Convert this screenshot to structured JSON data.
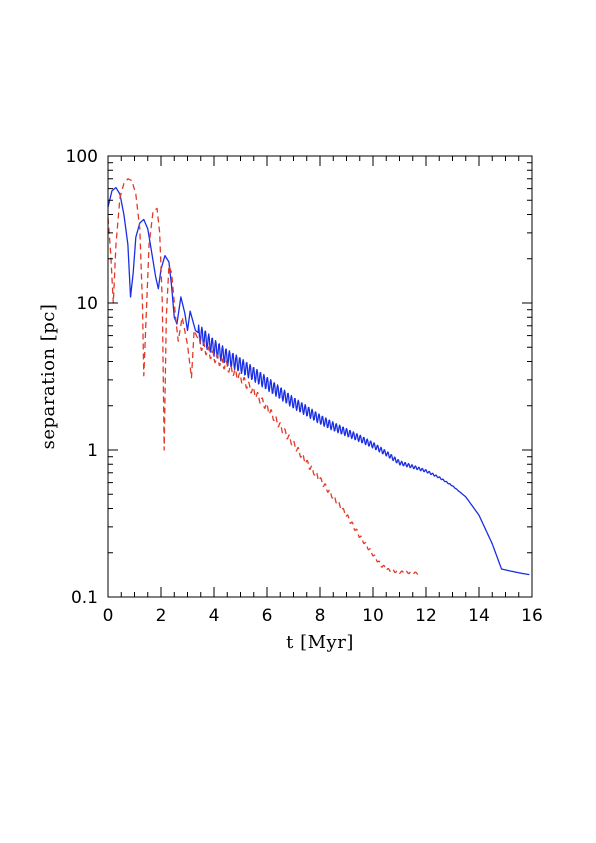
{
  "chart_data": {
    "type": "line",
    "xlabel": "t [Myr]",
    "ylabel": "separation [pc]",
    "xlim": [
      0,
      16
    ],
    "ylim": [
      0.1,
      100
    ],
    "yscale": "log",
    "grid": false,
    "legend": "none",
    "x_ticks": [
      "0",
      "2",
      "4",
      "6",
      "8",
      "10",
      "12",
      "14",
      "16"
    ],
    "y_ticks": [
      "0.1",
      "1",
      "10",
      "100"
    ],
    "series": [
      {
        "style": "solid",
        "color": "#1a2ee6",
        "points": [
          [
            0,
            45
          ],
          [
            0.15,
            58
          ],
          [
            0.3,
            61
          ],
          [
            0.45,
            55
          ],
          [
            0.6,
            40
          ],
          [
            0.75,
            25
          ],
          [
            0.85,
            11
          ],
          [
            0.95,
            16
          ],
          [
            1.05,
            28
          ],
          [
            1.2,
            35
          ],
          [
            1.35,
            37
          ],
          [
            1.5,
            32
          ],
          [
            1.65,
            22
          ],
          [
            1.8,
            15
          ],
          [
            1.9,
            12.5
          ],
          [
            2.0,
            17
          ],
          [
            2.15,
            21
          ],
          [
            2.3,
            19
          ],
          [
            2.4,
            13
          ],
          [
            2.5,
            8
          ],
          [
            2.6,
            7.2
          ],
          [
            2.75,
            11
          ],
          [
            2.9,
            8.5
          ],
          [
            3.0,
            6.5
          ],
          [
            3.1,
            8.8
          ],
          [
            3.3,
            6.5
          ],
          [
            3.6,
            5.9
          ],
          [
            4.0,
            5.0
          ],
          [
            4.5,
            4.3
          ],
          [
            5.0,
            3.8
          ],
          [
            5.5,
            3.3
          ],
          [
            6.0,
            2.85
          ],
          [
            6.5,
            2.45
          ],
          [
            7.0,
            2.1
          ],
          [
            7.5,
            1.85
          ],
          [
            8.0,
            1.62
          ],
          [
            8.5,
            1.45
          ],
          [
            9.0,
            1.32
          ],
          [
            9.5,
            1.2
          ],
          [
            10.0,
            1.08
          ],
          [
            10.5,
            0.95
          ],
          [
            11.0,
            0.82
          ],
          [
            11.5,
            0.77
          ],
          [
            12.0,
            0.72
          ],
          [
            12.5,
            0.65
          ],
          [
            13.0,
            0.57
          ],
          [
            13.5,
            0.48
          ],
          [
            14.0,
            0.36
          ],
          [
            14.5,
            0.23
          ],
          [
            14.85,
            0.155
          ],
          [
            15.2,
            0.15
          ],
          [
            15.6,
            0.145
          ],
          [
            15.9,
            0.142
          ]
        ]
      },
      {
        "style": "dashed",
        "color": "#e23a2a",
        "points": [
          [
            0,
            38
          ],
          [
            0.1,
            22
          ],
          [
            0.2,
            10
          ],
          [
            0.3,
            25
          ],
          [
            0.45,
            52
          ],
          [
            0.6,
            65
          ],
          [
            0.75,
            70
          ],
          [
            0.9,
            68
          ],
          [
            1.05,
            55
          ],
          [
            1.2,
            32
          ],
          [
            1.3,
            10
          ],
          [
            1.35,
            3.2
          ],
          [
            1.45,
            9
          ],
          [
            1.55,
            25
          ],
          [
            1.7,
            42
          ],
          [
            1.85,
            44
          ],
          [
            1.95,
            30
          ],
          [
            2.05,
            10
          ],
          [
            2.12,
            1.0
          ],
          [
            2.2,
            8
          ],
          [
            2.3,
            18
          ],
          [
            2.4,
            16
          ],
          [
            2.55,
            8
          ],
          [
            2.65,
            5.5
          ],
          [
            2.8,
            8
          ],
          [
            3.0,
            5.2
          ],
          [
            3.15,
            3.1
          ],
          [
            3.25,
            6.5
          ],
          [
            3.5,
            5.2
          ],
          [
            4.0,
            4.3
          ],
          [
            4.5,
            3.7
          ],
          [
            5.0,
            3.1
          ],
          [
            5.5,
            2.5
          ],
          [
            6.0,
            1.95
          ],
          [
            6.5,
            1.45
          ],
          [
            7.0,
            1.1
          ],
          [
            7.5,
            0.82
          ],
          [
            8.0,
            0.63
          ],
          [
            8.5,
            0.48
          ],
          [
            9.0,
            0.36
          ],
          [
            9.5,
            0.26
          ],
          [
            10.0,
            0.195
          ],
          [
            10.3,
            0.165
          ],
          [
            10.6,
            0.152
          ],
          [
            11.0,
            0.148
          ],
          [
            11.5,
            0.146
          ],
          [
            11.75,
            0.145
          ]
        ]
      }
    ]
  }
}
